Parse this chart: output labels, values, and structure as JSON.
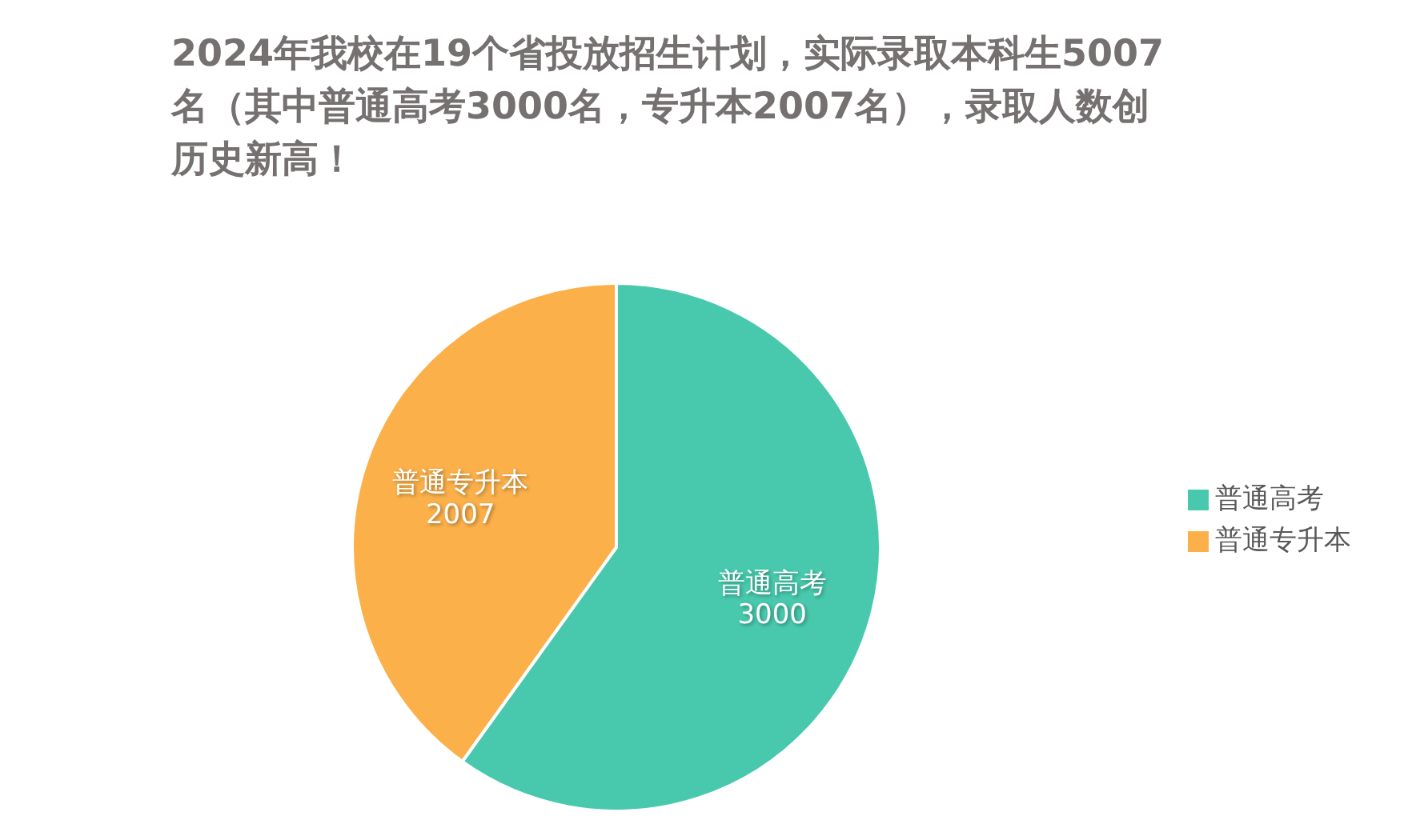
{
  "chart_data": {
    "type": "pie",
    "title": "2024年我校在19个省投放招生计划，实际录取本科生5007名（其中普通高考3000名，专升本2007名），录取人数创历史新高！",
    "categories": [
      "普通高考",
      "普通专升本"
    ],
    "values": [
      3000,
      2007
    ],
    "colors": [
      "#48c9ad",
      "#fbb04a"
    ],
    "data_labels": true,
    "legend": "right"
  }
}
